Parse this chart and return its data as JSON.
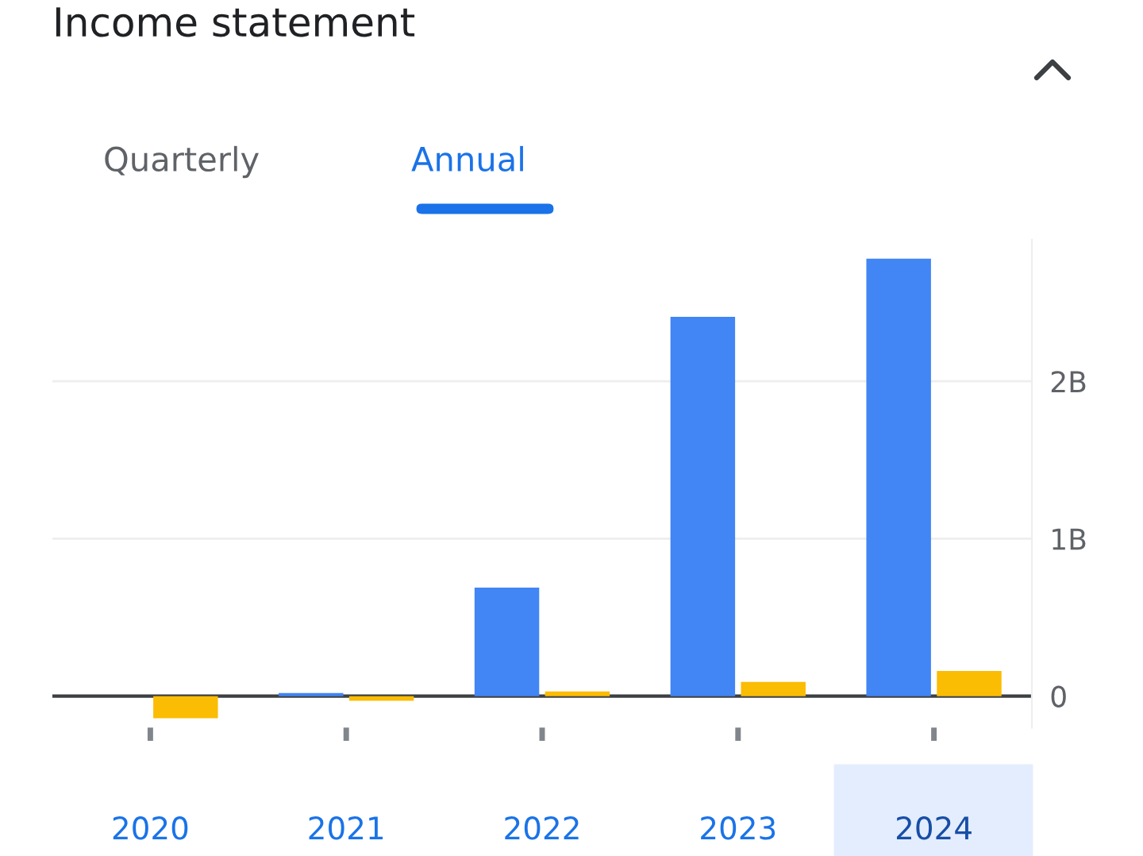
{
  "chart_data": {
    "type": "bar",
    "title": "Income statement",
    "annotations": [
      "Quarterly",
      "Annual"
    ],
    "categories": [
      "2020",
      "2021",
      "2022",
      "2023",
      "2024"
    ],
    "series": [
      {
        "color": "#4285f4",
        "values": [
          0,
          0.02,
          0.69,
          2.41,
          2.78
        ]
      },
      {
        "color": "#fbbc04",
        "values": [
          -0.14,
          -0.03,
          0.03,
          0.09,
          0.16
        ]
      }
    ],
    "ylim": [
      -0.2,
      2.9
    ],
    "yticks": [
      {
        "value": 0,
        "label": "0"
      },
      {
        "value": 1,
        "label": "1B"
      },
      {
        "value": 2,
        "label": "2B"
      }
    ],
    "grid": "y",
    "legend": false
  }
}
